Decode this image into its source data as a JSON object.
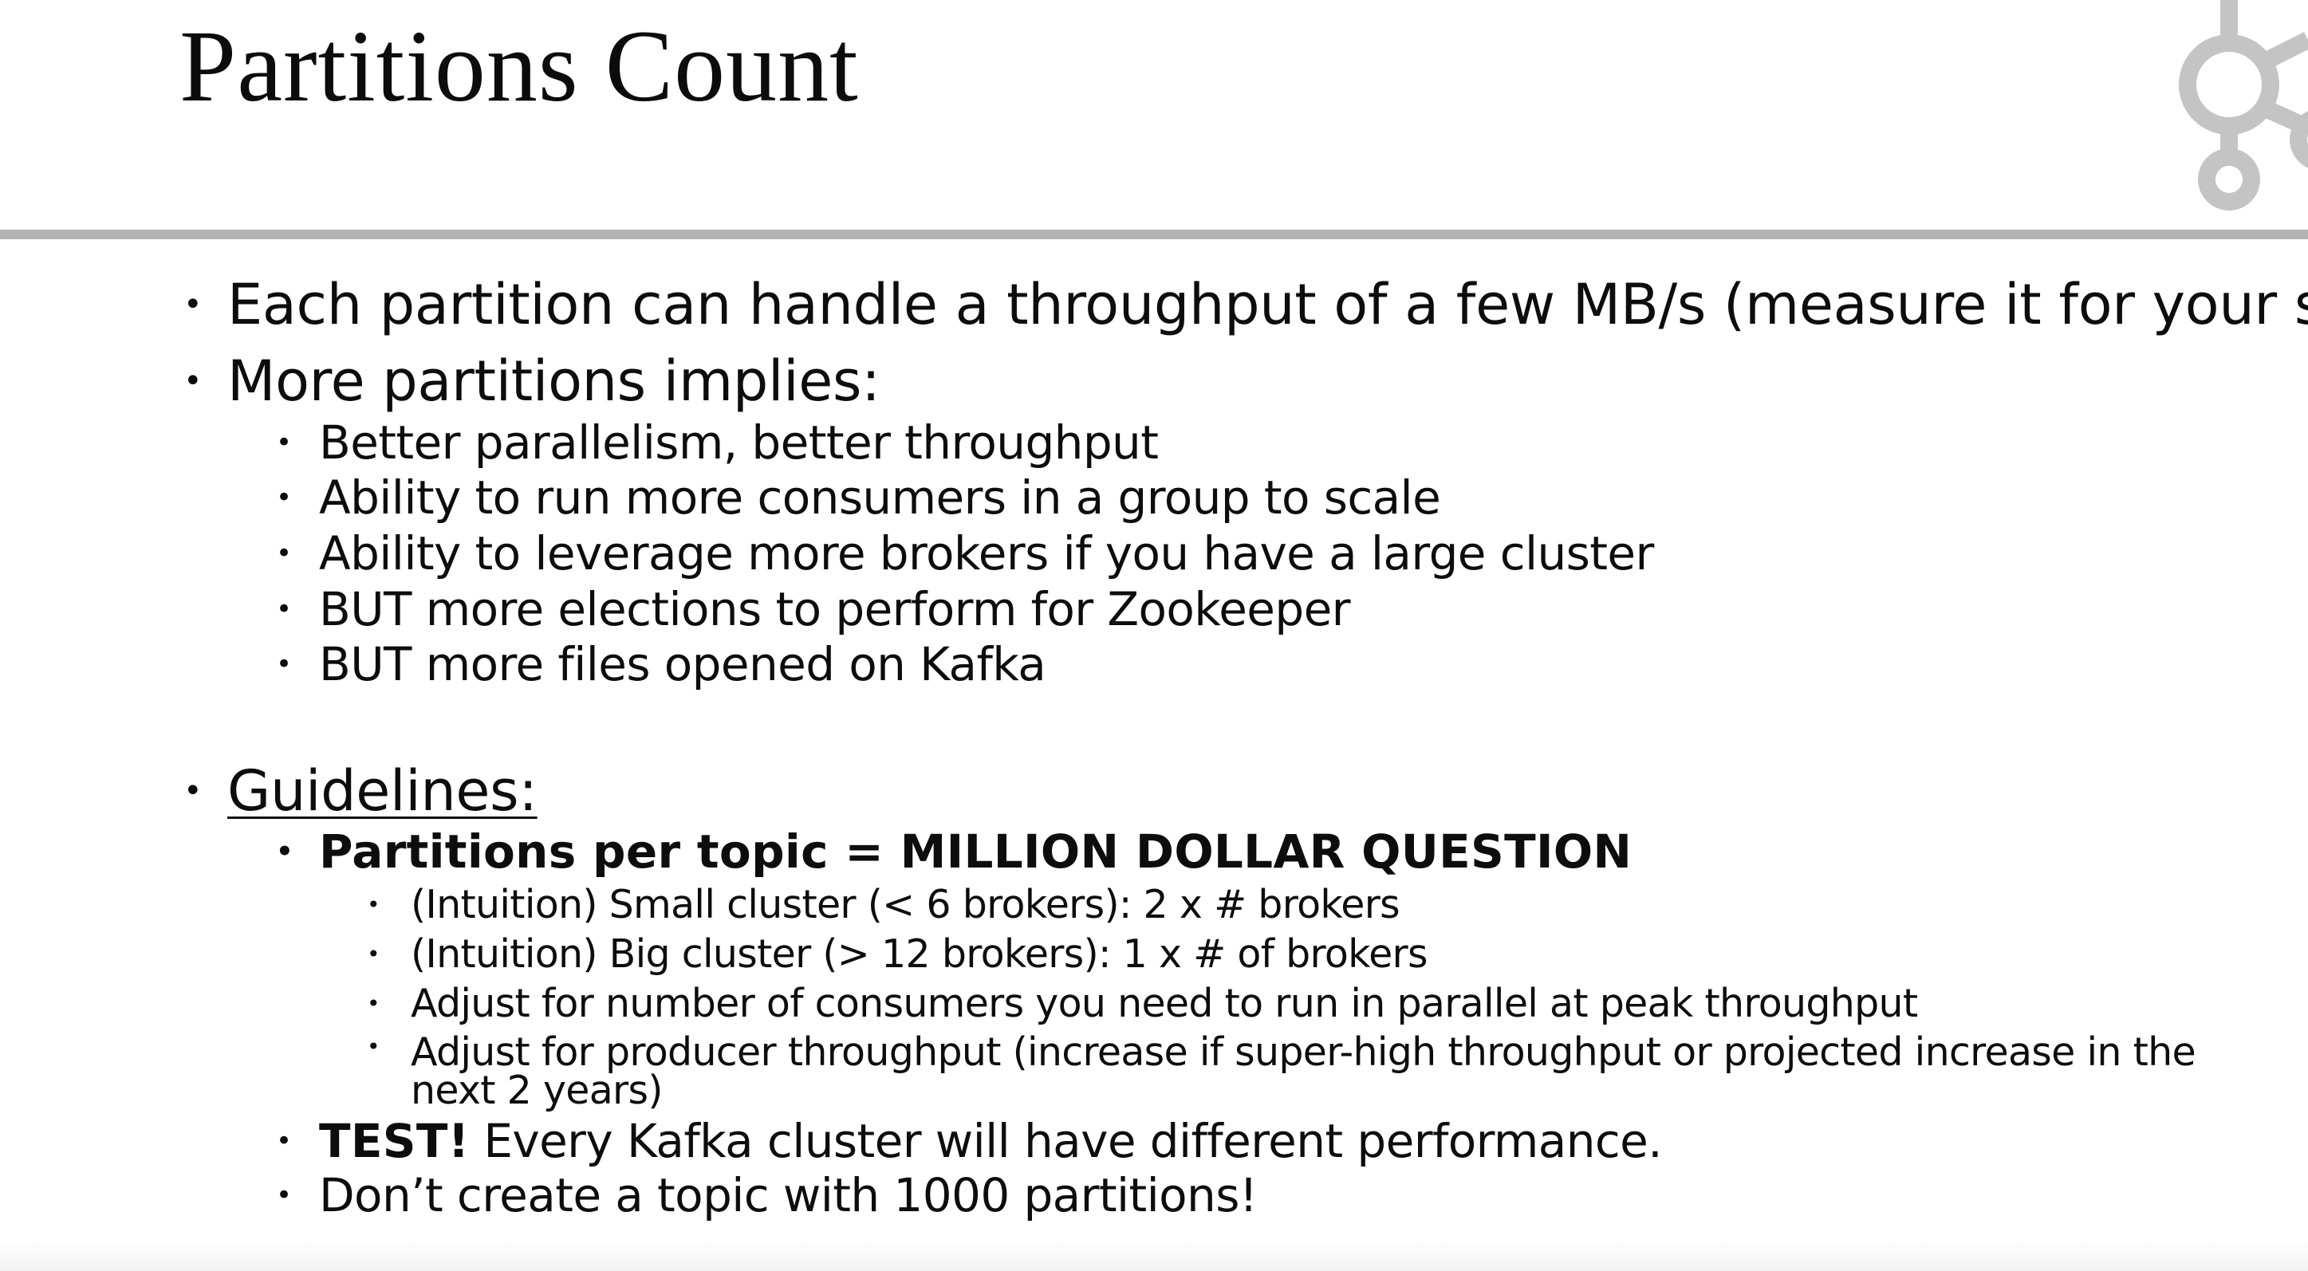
{
  "slide": {
    "title": "Partitions Count",
    "logo_icon": "kafka-logo-icon",
    "colors": {
      "divider": "#b3b3b3",
      "logo": "#c4c4c4",
      "text": "#0d0d0d"
    }
  },
  "bullets": {
    "item1": "Each partition can handle a throughput of a few MB/s (measure it for your setup!)",
    "item2": "More partitions implies:",
    "item2_sub": [
      "Better parallelism, better throughput",
      "Ability to run more consumers in a group to scale",
      "Ability to leverage more brokers if you have a large cluster",
      "BUT more elections to perform for Zookeeper",
      "BUT more files opened on Kafka"
    ],
    "item3": "Guidelines:",
    "item3_sub": {
      "partitions_heading": "Partitions per topic = MILLION DOLLAR QUESTION",
      "partitions_details": [
        "(Intuition) Small cluster (< 6 brokers): 2 x # brokers",
        "(Intuition) Big cluster (> 12 brokers): 1 x # of brokers",
        "Adjust for number of consumers you need to run in parallel at peak throughput",
        "Adjust for producer throughput (increase if super-high throughput or projected increase in the next 2 years)"
      ],
      "test_bold": "TEST!",
      "test_rest": " Every Kafka cluster will have different performance.",
      "dont": "Don’t create a topic with 1000 partitions!"
    }
  }
}
